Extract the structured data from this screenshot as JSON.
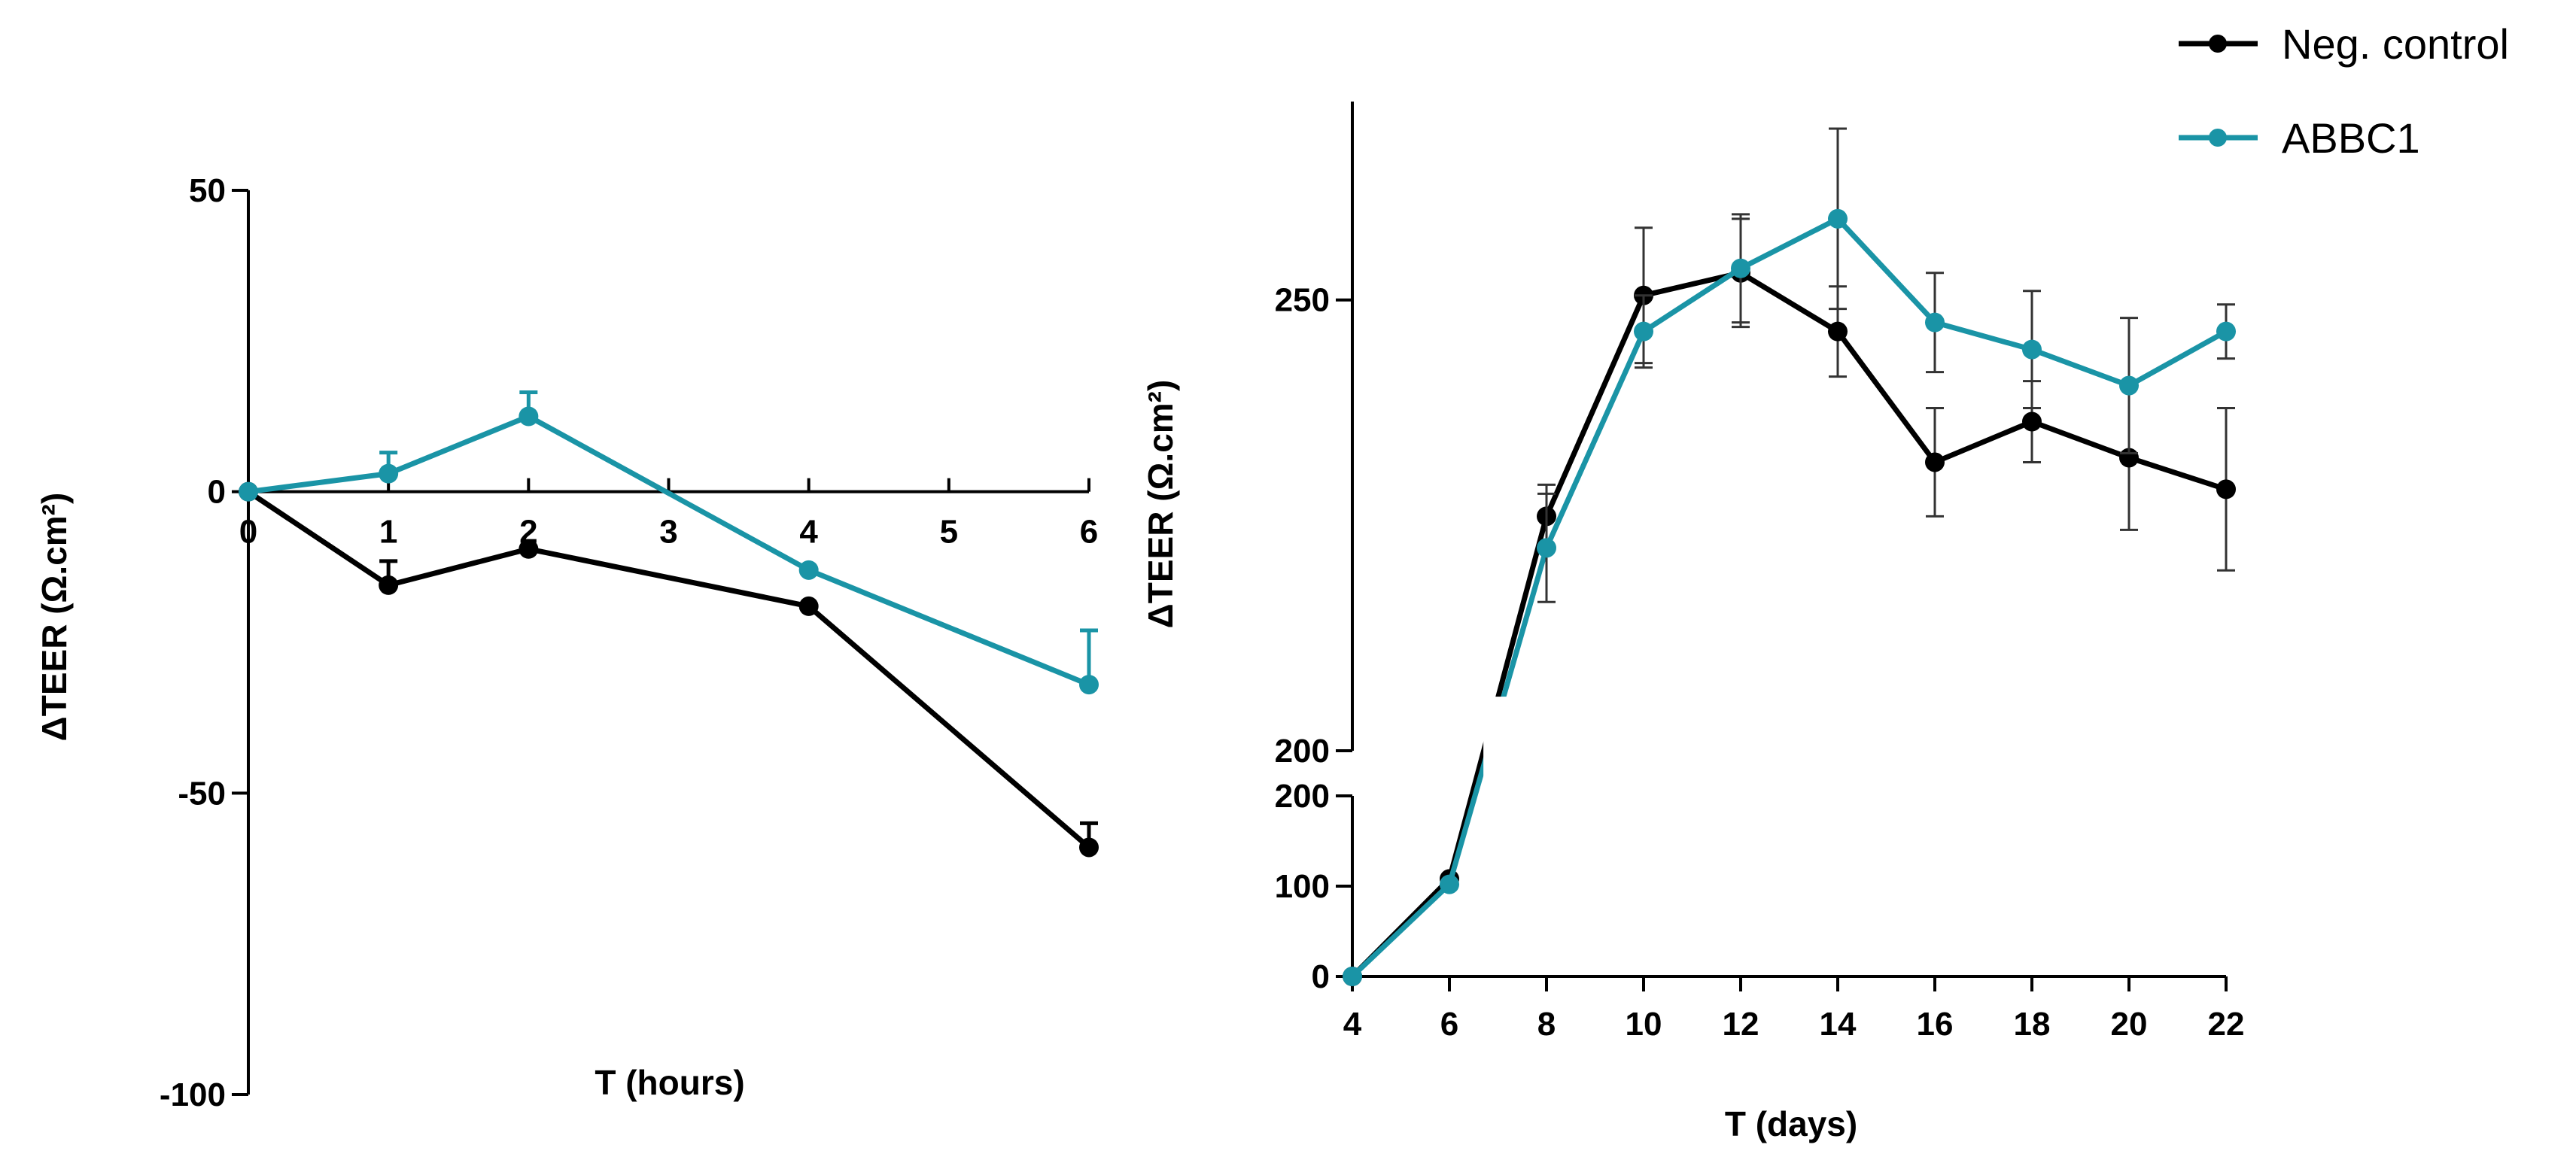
{
  "colors": {
    "neg": "#000000",
    "abbc1": "#1a94a6",
    "axis": "#000000"
  },
  "legend": [
    {
      "label": "Neg. control",
      "color": "#000000"
    },
    {
      "label": "ABBC1",
      "color": "#1a94a6"
    }
  ],
  "chart_data": [
    {
      "type": "line",
      "title": "",
      "xlabel": "T (hours)",
      "ylabel": "ΔTEER (Ω.cm²)",
      "xlim": [
        0,
        6
      ],
      "ylim": [
        -100,
        50
      ],
      "xticks": [
        "0",
        "1",
        "2",
        "3",
        "4",
        "5",
        "6"
      ],
      "yticks": [
        "50",
        "0",
        "-50",
        "-100"
      ],
      "series": [
        {
          "name": "Neg. control",
          "color": "#000000",
          "x": [
            0,
            1,
            2,
            4,
            6
          ],
          "y": [
            0,
            -15.5,
            -9.5,
            -19,
            -59
          ],
          "err": [
            0,
            4,
            0,
            0,
            4
          ]
        },
        {
          "name": "ABBC1",
          "color": "#1a94a6",
          "x": [
            0,
            1,
            2,
            4,
            6
          ],
          "y": [
            0,
            3,
            12.5,
            -13,
            -32
          ],
          "err": [
            0,
            3.5,
            4,
            0,
            9
          ]
        }
      ]
    },
    {
      "type": "line",
      "title": "",
      "xlabel": "T (days)",
      "ylabel": "ΔTEER (Ω.cm²)",
      "xlim": [
        4,
        22
      ],
      "ylim_lower": [
        0,
        200
      ],
      "ylim_upper": [
        200,
        272
      ],
      "xticks": [
        "4",
        "6",
        "8",
        "10",
        "12",
        "14",
        "16",
        "18",
        "20",
        "22"
      ],
      "yticks_lower": [
        "0",
        "100",
        "200"
      ],
      "yticks_upper": [
        "200",
        "250"
      ],
      "series": [
        {
          "name": "Neg. control",
          "color": "#000000",
          "x": [
            4,
            6,
            8,
            10,
            12,
            14,
            16,
            18,
            20,
            22
          ],
          "y": [
            0,
            108,
            226,
            250.5,
            253,
            246.5,
            232,
            236.5,
            232.5,
            229
          ],
          "err": [
            0,
            0,
            3.5,
            7.5,
            6,
            5,
            6,
            4.5,
            8,
            9
          ]
        },
        {
          "name": "ABBC1",
          "color": "#1a94a6",
          "x": [
            4,
            6,
            8,
            10,
            12,
            14,
            16,
            18,
            20,
            22
          ],
          "y": [
            0,
            102,
            222.5,
            246.5,
            253.5,
            259,
            247.5,
            244.5,
            240.5,
            246.5
          ],
          "err": [
            0,
            0,
            6,
            4,
            6,
            10,
            5.5,
            6.5,
            7.5,
            3
          ]
        }
      ]
    }
  ]
}
